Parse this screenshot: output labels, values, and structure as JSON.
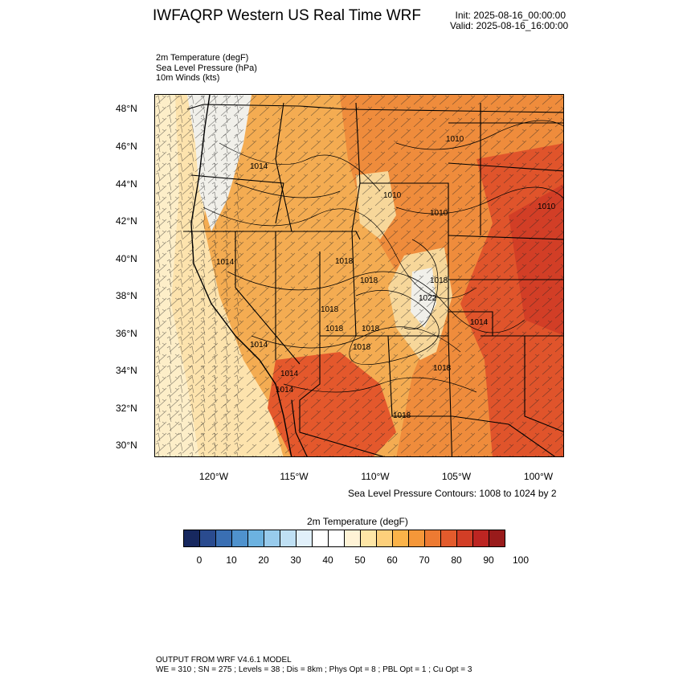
{
  "header": {
    "title": "IWFAQRP Western US Real Time WRF",
    "init": "Init: 2025-08-16_00:00:00",
    "valid": "Valid: 2025-08-16_16:00:00"
  },
  "fields": [
    "2m Temperature   (degF)",
    "Sea Level Pressure   (hPa)",
    "10m Winds   (kts)"
  ],
  "map": {
    "lat_labels": [
      "48°N",
      "46°N",
      "44°N",
      "42°N",
      "40°N",
      "38°N",
      "36°N",
      "34°N",
      "32°N",
      "30°N"
    ],
    "lon_labels": [
      "120°W",
      "115°W",
      "110°W",
      "105°W",
      "100°W"
    ],
    "pressure_labels": [
      "1010",
      "1014",
      "1010",
      "1010",
      "1010",
      "1014",
      "1018",
      "1018",
      "1018",
      "1018",
      "1018",
      "1018",
      "1022",
      "1014",
      "1018",
      "1014",
      "1018",
      "1014",
      "1014",
      "1018"
    ],
    "fill_colors": {
      "ocean": "#fde9b8",
      "cool": "#f3f3ee",
      "warm": "#f6b659",
      "hot": "#ef8c3c",
      "veryhot": "#de4b2a"
    }
  },
  "contour_note": "Sea Level Pressure Contours: 1008 to 1024 by 2",
  "colorbar": {
    "title": "2m Temperature   (degF)",
    "colors": [
      "#17285f",
      "#2a4b8f",
      "#3a6fb3",
      "#4f92cd",
      "#6cb2e0",
      "#98cbec",
      "#bfe0f4",
      "#e1f0fa",
      "#ffffff",
      "#ffffff",
      "#fff3d6",
      "#fee6a6",
      "#fdd07b",
      "#fbb349",
      "#f59739",
      "#ed7a32",
      "#e35b2c",
      "#d23e26",
      "#bc2522",
      "#991b1b"
    ],
    "ticks": [
      "0",
      "10",
      "20",
      "30",
      "40",
      "50",
      "60",
      "70",
      "80",
      "90",
      "100"
    ]
  },
  "footer": {
    "line1": "OUTPUT FROM WRF V4.6.1 MODEL",
    "line2": "WE = 310 ; SN = 275 ; Levels = 38 ; Dis = 8km ; Phys Opt = 8 ; PBL Opt = 1 ; Cu Opt = 3"
  }
}
